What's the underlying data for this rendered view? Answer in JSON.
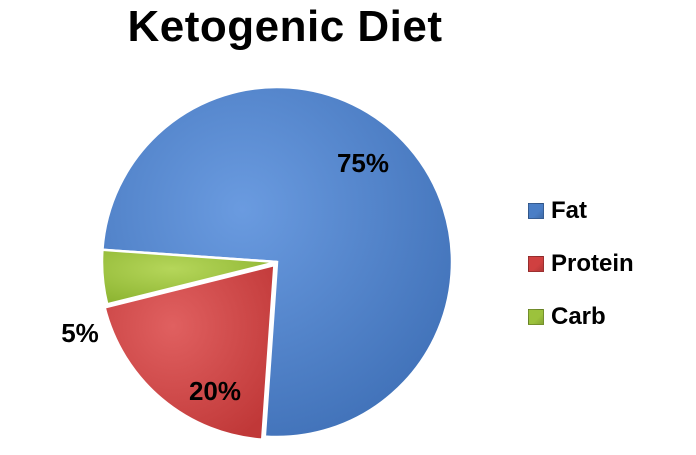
{
  "chart_data": {
    "type": "pie",
    "title": "Ketogenic Diet",
    "categories": [
      "Fat",
      "Protein",
      "Carb"
    ],
    "values": [
      75,
      20,
      5
    ],
    "data_labels": [
      "75%",
      "20%",
      "5%"
    ],
    "colors": [
      "#4A7EC6",
      "#D04040",
      "#9CC23C"
    ],
    "legend_position": "right"
  }
}
